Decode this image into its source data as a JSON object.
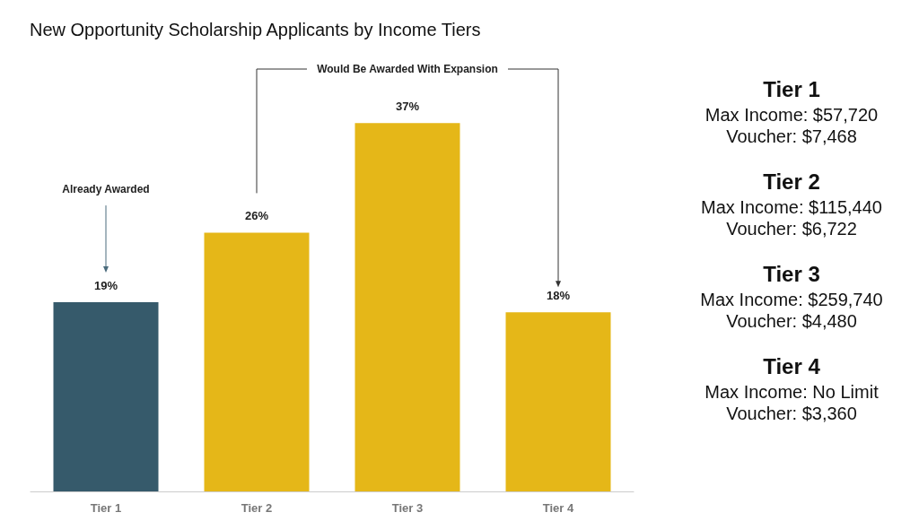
{
  "chart_data": [
    {
      "type": "bar",
      "title": "New Opportunity Scholarship Applicants by Income Tiers",
      "categories": [
        "Tier 1",
        "Tier 2",
        "Tier 3",
        "Tier 4"
      ],
      "values": [
        19,
        26,
        37,
        18
      ],
      "colors": [
        "#365a6b",
        "#e5b718",
        "#e5b718",
        "#e5b718"
      ],
      "value_labels": [
        "19%",
        "26%",
        "37%",
        "18%"
      ],
      "annotations": [
        {
          "text": "Already Awarded",
          "x": "Tier 1"
        },
        "Would Be Awarded With Expansion"
      ],
      "tick_labels": "x"
    },
    {
      "type": "other",
      "annotations": [
        "Tier 1",
        "Max Income: $57,720",
        "Voucher: $7,468",
        "Tier 2",
        "Max Income: $115,440",
        "Voucher: $6,722",
        "Tier 3",
        "Max Income: $259,740",
        "Voucher: $4,480",
        "Tier 4",
        "Max Income: No Limit",
        "Voucher: $3,360"
      ]
    }
  ]
}
